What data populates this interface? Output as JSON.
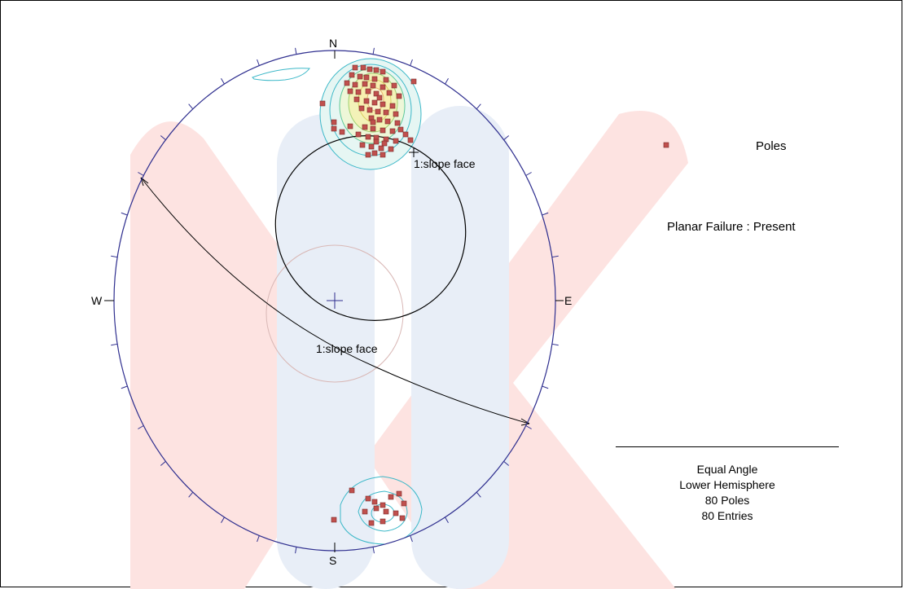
{
  "compass": {
    "north": "N",
    "south": "S",
    "east": "E",
    "west": "W"
  },
  "labels": {
    "slope_face_pole": "1:slope face",
    "slope_face_plane": "1:slope face"
  },
  "legend": {
    "poles_label": "Poles",
    "failure_status": "Planar Failure : Present"
  },
  "stats": {
    "projection": "Equal Angle",
    "hemisphere": "Lower Hemisphere",
    "poles_count": "80 Poles",
    "entries_count": "80 Entries"
  },
  "colors": {
    "net_outline": "#2f2f8f",
    "pole_marker": "#c0504d",
    "contour_outer": "#3cb8c8",
    "contour_inner": "#b8d070",
    "contour_core": "#f3eca8",
    "watermark_red": "#fde3e1",
    "watermark_blue": "#e8eef7",
    "daylight_envelope": "#000000",
    "friction_cone": "#d9b8b6"
  },
  "icons": {
    "pole_marker": "red-square-marker",
    "center_marker": "blue-cross-marker"
  }
}
